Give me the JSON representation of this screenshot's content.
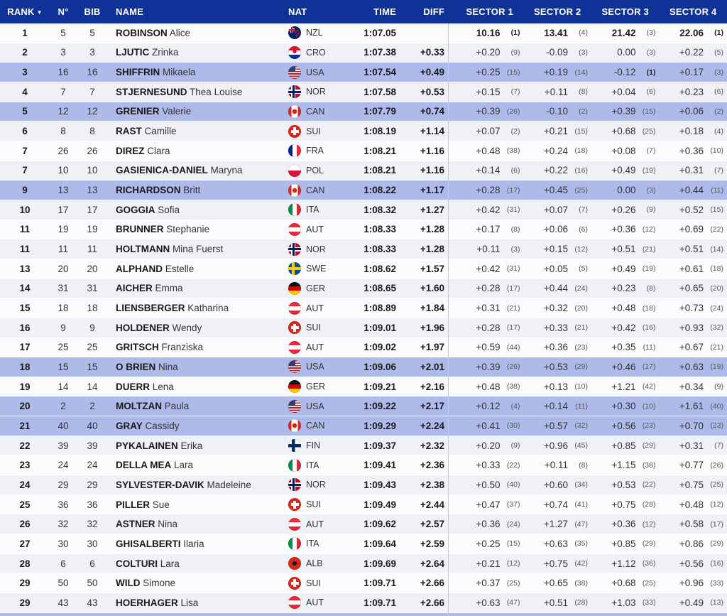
{
  "colors": {
    "header_bg": "#0e3298",
    "row_highlight": "#adbaea",
    "row_even": "#fbfbfd",
    "row_odd": "#f0f0f7",
    "divider": "#c9c9ce"
  },
  "header": {
    "rank": "RANK",
    "sort_icon": "▼",
    "no": "N°",
    "bib": "BIB",
    "name": "NAME",
    "nat": "NAT",
    "time": "TIME",
    "diff": "DIFF",
    "sectors": [
      "SECTOR 1",
      "SECTOR 2",
      "SECTOR 3",
      "SECTOR 4"
    ]
  },
  "rows": [
    {
      "rank": "1",
      "no": "5",
      "bib": "5",
      "last": "ROBINSON",
      "first": "Alice",
      "nat": "NZL",
      "time": "1:07.05",
      "diff": "",
      "leader": true,
      "hl": false,
      "s": [
        [
          "10.16",
          "(1)"
        ],
        [
          "13.41",
          "(4)"
        ],
        [
          "21.42",
          "(3)"
        ],
        [
          "22.06",
          "(1)"
        ]
      ]
    },
    {
      "rank": "2",
      "no": "3",
      "bib": "3",
      "last": "LJUTIC",
      "first": "Zrinka",
      "nat": "CRO",
      "time": "1:07.38",
      "diff": "+0.33",
      "leader": false,
      "hl": false,
      "s": [
        [
          "+0.20",
          "(9)"
        ],
        [
          "-0.09",
          "(3)"
        ],
        [
          "0.00",
          "(3)"
        ],
        [
          "+0.22",
          "(5)"
        ]
      ]
    },
    {
      "rank": "3",
      "no": "16",
      "bib": "16",
      "last": "SHIFFRIN",
      "first": "Mikaela",
      "nat": "USA",
      "time": "1:07.54",
      "diff": "+0.49",
      "leader": false,
      "hl": true,
      "s": [
        [
          "+0.25",
          "(15)"
        ],
        [
          "+0.19",
          "(14)"
        ],
        [
          "-0.12",
          "(1)"
        ],
        [
          "+0.17",
          "(3)"
        ]
      ]
    },
    {
      "rank": "4",
      "no": "7",
      "bib": "7",
      "last": "STJERNESUND",
      "first": "Thea Louise",
      "nat": "NOR",
      "time": "1:07.58",
      "diff": "+0.53",
      "leader": false,
      "hl": false,
      "s": [
        [
          "+0.15",
          "(7)"
        ],
        [
          "+0.11",
          "(8)"
        ],
        [
          "+0.04",
          "(6)"
        ],
        [
          "+0.23",
          "(6)"
        ]
      ]
    },
    {
      "rank": "5",
      "no": "12",
      "bib": "12",
      "last": "GRENIER",
      "first": "Valerie",
      "nat": "CAN",
      "time": "1:07.79",
      "diff": "+0.74",
      "leader": false,
      "hl": true,
      "s": [
        [
          "+0.39",
          "(26)"
        ],
        [
          "-0.10",
          "(2)"
        ],
        [
          "+0.39",
          "(15)"
        ],
        [
          "+0.06",
          "(2)"
        ]
      ]
    },
    {
      "rank": "6",
      "no": "8",
      "bib": "8",
      "last": "RAST",
      "first": "Camille",
      "nat": "SUI",
      "time": "1:08.19",
      "diff": "+1.14",
      "leader": false,
      "hl": false,
      "s": [
        [
          "+0.07",
          "(2)"
        ],
        [
          "+0.21",
          "(15)"
        ],
        [
          "+0.68",
          "(25)"
        ],
        [
          "+0.18",
          "(4)"
        ]
      ]
    },
    {
      "rank": "7",
      "no": "26",
      "bib": "26",
      "last": "DIREZ",
      "first": "Clara",
      "nat": "FRA",
      "time": "1:08.21",
      "diff": "+1.16",
      "leader": false,
      "hl": false,
      "s": [
        [
          "+0.48",
          "(38)"
        ],
        [
          "+0.24",
          "(18)"
        ],
        [
          "+0.08",
          "(7)"
        ],
        [
          "+0.36",
          "(10)"
        ]
      ]
    },
    {
      "rank": "7",
      "no": "10",
      "bib": "10",
      "last": "GASIENICA-DANIEL",
      "first": "Maryna",
      "nat": "POL",
      "time": "1:08.21",
      "diff": "+1.16",
      "leader": false,
      "hl": false,
      "s": [
        [
          "+0.14",
          "(6)"
        ],
        [
          "+0.22",
          "(16)"
        ],
        [
          "+0.49",
          "(19)"
        ],
        [
          "+0.31",
          "(7)"
        ]
      ]
    },
    {
      "rank": "9",
      "no": "13",
      "bib": "13",
      "last": "RICHARDSON",
      "first": "Britt",
      "nat": "CAN",
      "time": "1:08.22",
      "diff": "+1.17",
      "leader": false,
      "hl": true,
      "s": [
        [
          "+0.28",
          "(17)"
        ],
        [
          "+0.45",
          "(25)"
        ],
        [
          "0.00",
          "(3)"
        ],
        [
          "+0.44",
          "(11)"
        ]
      ]
    },
    {
      "rank": "10",
      "no": "17",
      "bib": "17",
      "last": "GOGGIA",
      "first": "Sofia",
      "nat": "ITA",
      "time": "1:08.32",
      "diff": "+1.27",
      "leader": false,
      "hl": false,
      "s": [
        [
          "+0.42",
          "(31)"
        ],
        [
          "+0.07",
          "(7)"
        ],
        [
          "+0.26",
          "(9)"
        ],
        [
          "+0.52",
          "(15)"
        ]
      ]
    },
    {
      "rank": "11",
      "no": "19",
      "bib": "19",
      "last": "BRUNNER",
      "first": "Stephanie",
      "nat": "AUT",
      "time": "1:08.33",
      "diff": "+1.28",
      "leader": false,
      "hl": false,
      "s": [
        [
          "+0.17",
          "(8)"
        ],
        [
          "+0.06",
          "(6)"
        ],
        [
          "+0.36",
          "(12)"
        ],
        [
          "+0.69",
          "(22)"
        ]
      ]
    },
    {
      "rank": "11",
      "no": "11",
      "bib": "11",
      "last": "HOLTMANN",
      "first": "Mina Fuerst",
      "nat": "NOR",
      "time": "1:08.33",
      "diff": "+1.28",
      "leader": false,
      "hl": false,
      "s": [
        [
          "+0.11",
          "(3)"
        ],
        [
          "+0.15",
          "(12)"
        ],
        [
          "+0.51",
          "(21)"
        ],
        [
          "+0.51",
          "(14)"
        ]
      ]
    },
    {
      "rank": "13",
      "no": "20",
      "bib": "20",
      "last": "ALPHAND",
      "first": "Estelle",
      "nat": "SWE",
      "time": "1:08.62",
      "diff": "+1.57",
      "leader": false,
      "hl": false,
      "s": [
        [
          "+0.42",
          "(31)"
        ],
        [
          "+0.05",
          "(5)"
        ],
        [
          "+0.49",
          "(19)"
        ],
        [
          "+0.61",
          "(18)"
        ]
      ]
    },
    {
      "rank": "14",
      "no": "31",
      "bib": "31",
      "last": "AICHER",
      "first": "Emma",
      "nat": "GER",
      "time": "1:08.65",
      "diff": "+1.60",
      "leader": false,
      "hl": false,
      "s": [
        [
          "+0.28",
          "(17)"
        ],
        [
          "+0.44",
          "(24)"
        ],
        [
          "+0.23",
          "(8)"
        ],
        [
          "+0.65",
          "(20)"
        ]
      ]
    },
    {
      "rank": "15",
      "no": "18",
      "bib": "18",
      "last": "LIENSBERGER",
      "first": "Katharina",
      "nat": "AUT",
      "time": "1:08.89",
      "diff": "+1.84",
      "leader": false,
      "hl": false,
      "s": [
        [
          "+0.31",
          "(21)"
        ],
        [
          "+0.32",
          "(20)"
        ],
        [
          "+0.48",
          "(18)"
        ],
        [
          "+0.73",
          "(24)"
        ]
      ]
    },
    {
      "rank": "16",
      "no": "9",
      "bib": "9",
      "last": "HOLDENER",
      "first": "Wendy",
      "nat": "SUI",
      "time": "1:09.01",
      "diff": "+1.96",
      "leader": false,
      "hl": false,
      "s": [
        [
          "+0.28",
          "(17)"
        ],
        [
          "+0.33",
          "(21)"
        ],
        [
          "+0.42",
          "(16)"
        ],
        [
          "+0.93",
          "(32)"
        ]
      ]
    },
    {
      "rank": "17",
      "no": "25",
      "bib": "25",
      "last": "GRITSCH",
      "first": "Franziska",
      "nat": "AUT",
      "time": "1:09.02",
      "diff": "+1.97",
      "leader": false,
      "hl": false,
      "s": [
        [
          "+0.59",
          "(44)"
        ],
        [
          "+0.36",
          "(23)"
        ],
        [
          "+0.35",
          "(11)"
        ],
        [
          "+0.67",
          "(21)"
        ]
      ]
    },
    {
      "rank": "18",
      "no": "15",
      "bib": "15",
      "last": "O BRIEN",
      "first": "Nina",
      "nat": "USA",
      "time": "1:09.06",
      "diff": "+2.01",
      "leader": false,
      "hl": true,
      "s": [
        [
          "+0.39",
          "(26)"
        ],
        [
          "+0.53",
          "(29)"
        ],
        [
          "+0.46",
          "(17)"
        ],
        [
          "+0.63",
          "(19)"
        ]
      ]
    },
    {
      "rank": "19",
      "no": "14",
      "bib": "14",
      "last": "DUERR",
      "first": "Lena",
      "nat": "GER",
      "time": "1:09.21",
      "diff": "+2.16",
      "leader": false,
      "hl": false,
      "s": [
        [
          "+0.48",
          "(38)"
        ],
        [
          "+0.13",
          "(10)"
        ],
        [
          "+1.21",
          "(42)"
        ],
        [
          "+0.34",
          "(9)"
        ]
      ]
    },
    {
      "rank": "20",
      "no": "2",
      "bib": "2",
      "last": "MOLTZAN",
      "first": "Paula",
      "nat": "USA",
      "time": "1:09.22",
      "diff": "+2.17",
      "leader": false,
      "hl": true,
      "s": [
        [
          "+0.12",
          "(4)"
        ],
        [
          "+0.14",
          "(11)"
        ],
        [
          "+0.30",
          "(10)"
        ],
        [
          "+1.61",
          "(40)"
        ]
      ]
    },
    {
      "rank": "21",
      "no": "40",
      "bib": "40",
      "last": "GRAY",
      "first": "Cassidy",
      "nat": "CAN",
      "time": "1:09.29",
      "diff": "+2.24",
      "leader": false,
      "hl": true,
      "s": [
        [
          "+0.41",
          "(30)"
        ],
        [
          "+0.57",
          "(32)"
        ],
        [
          "+0.56",
          "(23)"
        ],
        [
          "+0.70",
          "(23)"
        ]
      ]
    },
    {
      "rank": "22",
      "no": "39",
      "bib": "39",
      "last": "PYKALAINEN",
      "first": "Erika",
      "nat": "FIN",
      "time": "1:09.37",
      "diff": "+2.32",
      "leader": false,
      "hl": false,
      "s": [
        [
          "+0.20",
          "(9)"
        ],
        [
          "+0.96",
          "(45)"
        ],
        [
          "+0.85",
          "(29)"
        ],
        [
          "+0.31",
          "(7)"
        ]
      ]
    },
    {
      "rank": "23",
      "no": "24",
      "bib": "24",
      "last": "DELLA MEA",
      "first": "Lara",
      "nat": "ITA",
      "time": "1:09.41",
      "diff": "+2.36",
      "leader": false,
      "hl": false,
      "s": [
        [
          "+0.33",
          "(22)"
        ],
        [
          "+0.11",
          "(8)"
        ],
        [
          "+1.15",
          "(38)"
        ],
        [
          "+0.77",
          "(26)"
        ]
      ]
    },
    {
      "rank": "24",
      "no": "29",
      "bib": "29",
      "last": "SYLVESTER-DAVIK",
      "first": "Madeleine",
      "nat": "NOR",
      "time": "1:09.43",
      "diff": "+2.38",
      "leader": false,
      "hl": false,
      "s": [
        [
          "+0.50",
          "(40)"
        ],
        [
          "+0.60",
          "(34)"
        ],
        [
          "+0.53",
          "(22)"
        ],
        [
          "+0.75",
          "(25)"
        ]
      ]
    },
    {
      "rank": "25",
      "no": "36",
      "bib": "36",
      "last": "PILLER",
      "first": "Sue",
      "nat": "SUI",
      "time": "1:09.49",
      "diff": "+2.44",
      "leader": false,
      "hl": false,
      "s": [
        [
          "+0.47",
          "(37)"
        ],
        [
          "+0.74",
          "(41)"
        ],
        [
          "+0.75",
          "(28)"
        ],
        [
          "+0.48",
          "(12)"
        ]
      ]
    },
    {
      "rank": "26",
      "no": "32",
      "bib": "32",
      "last": "ASTNER",
      "first": "Nina",
      "nat": "AUT",
      "time": "1:09.62",
      "diff": "+2.57",
      "leader": false,
      "hl": false,
      "s": [
        [
          "+0.36",
          "(24)"
        ],
        [
          "+1.27",
          "(47)"
        ],
        [
          "+0.36",
          "(12)"
        ],
        [
          "+0.58",
          "(17)"
        ]
      ]
    },
    {
      "rank": "27",
      "no": "30",
      "bib": "30",
      "last": "GHISALBERTI",
      "first": "Ilaria",
      "nat": "ITA",
      "time": "1:09.64",
      "diff": "+2.59",
      "leader": false,
      "hl": false,
      "s": [
        [
          "+0.25",
          "(15)"
        ],
        [
          "+0.63",
          "(35)"
        ],
        [
          "+0.85",
          "(29)"
        ],
        [
          "+0.86",
          "(29)"
        ]
      ]
    },
    {
      "rank": "28",
      "no": "6",
      "bib": "6",
      "last": "COLTURI",
      "first": "Lara",
      "nat": "ALB",
      "time": "1:09.69",
      "diff": "+2.64",
      "leader": false,
      "hl": false,
      "s": [
        [
          "+0.21",
          "(12)"
        ],
        [
          "+0.75",
          "(42)"
        ],
        [
          "+1.12",
          "(36)"
        ],
        [
          "+0.56",
          "(16)"
        ]
      ]
    },
    {
      "rank": "29",
      "no": "50",
      "bib": "50",
      "last": "WILD",
      "first": "Simone",
      "nat": "SUI",
      "time": "1:09.71",
      "diff": "+2.66",
      "leader": false,
      "hl": false,
      "s": [
        [
          "+0.37",
          "(25)"
        ],
        [
          "+0.65",
          "(38)"
        ],
        [
          "+0.68",
          "(25)"
        ],
        [
          "+0.96",
          "(33)"
        ]
      ]
    },
    {
      "rank": "29",
      "no": "43",
      "bib": "43",
      "last": "HOERHAGER",
      "first": "Lisa",
      "nat": "AUT",
      "time": "1:09.71",
      "diff": "+2.66",
      "leader": false,
      "hl": false,
      "s": [
        [
          "+0.63",
          "(47)"
        ],
        [
          "+0.51",
          "(28)"
        ],
        [
          "+1.03",
          "(33)"
        ],
        [
          "+0.49",
          "(13)"
        ]
      ]
    }
  ]
}
